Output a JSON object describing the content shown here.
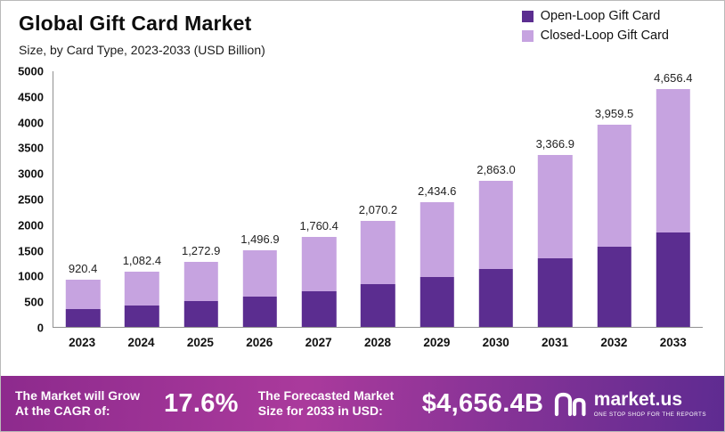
{
  "header": {
    "title": "Global Gift Card Market",
    "subtitle": "Size, by Card Type, 2023-2033 (USD Billion)"
  },
  "legend": {
    "items": [
      {
        "label": "Open-Loop Gift Card",
        "color": "#5b2d90"
      },
      {
        "label": "Closed-Loop Gift Card",
        "color": "#c6a3e0"
      }
    ]
  },
  "chart_data": {
    "type": "bar",
    "stacked": true,
    "title": "Global Gift Card Market Size, by Card Type, 2023-2033 (USD Billion)",
    "categories": [
      "2023",
      "2024",
      "2025",
      "2026",
      "2027",
      "2028",
      "2029",
      "2030",
      "2031",
      "2032",
      "2033"
    ],
    "series": [
      {
        "name": "Open-Loop Gift Card",
        "color": "#5b2d90",
        "values": [
          350,
          420,
          500,
          590,
          700,
          830,
          975,
          1140,
          1340,
          1570,
          1850
        ]
      },
      {
        "name": "Closed-Loop Gift Card",
        "color": "#c6a3e0",
        "values": [
          570.4,
          662.4,
          772.9,
          906.9,
          1060.4,
          1240.2,
          1459.6,
          1723.0,
          2026.9,
          2389.5,
          2806.4
        ]
      }
    ],
    "totals": [
      920.4,
      1082.4,
      1272.9,
      1496.9,
      1760.4,
      2070.2,
      2434.6,
      2863.0,
      3366.9,
      3959.5,
      4656.4
    ],
    "totals_labels": [
      "920.4",
      "1,082.4",
      "1,272.9",
      "1,496.9",
      "1,760.4",
      "2,070.2",
      "2,434.6",
      "2,863.0",
      "3,366.9",
      "3,959.5",
      "4,656.4"
    ],
    "ylim": [
      0,
      5000
    ],
    "ytick_step": 500,
    "yticks": [
      0,
      500,
      1000,
      1500,
      2000,
      2500,
      3000,
      3500,
      4000,
      4500,
      5000
    ],
    "xlabel": "",
    "ylabel": "",
    "grid": false,
    "legend_position": "top-right"
  },
  "footer": {
    "cagr_label": "The Market will Grow At the CAGR of:",
    "cagr_value": "17.6%",
    "forecast_label": "The Forecasted Market Size for 2033 in USD:",
    "forecast_value": "$4,656.4B",
    "brand": "market.us",
    "brand_tagline": "ONE STOP SHOP FOR THE REPORTS",
    "gradient": [
      "#8d2a8d",
      "#aa3a9c",
      "#5e2b91"
    ]
  }
}
